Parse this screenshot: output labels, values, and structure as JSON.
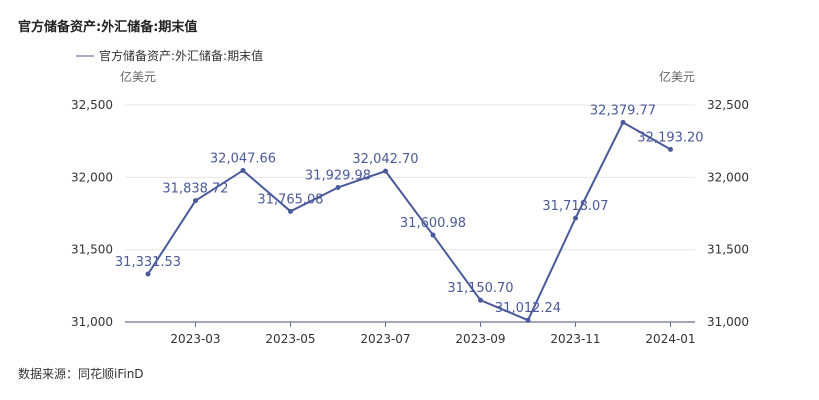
{
  "chart_data": {
    "type": "line",
    "title": "官方储备资产:外汇储备:期末值",
    "source": "数据来源：同花顺iFinD",
    "y_unit_left": "亿美元",
    "y_unit_right": "亿美元",
    "ylim": [
      31000,
      32500
    ],
    "y_ticks": [
      "31,000",
      "31,500",
      "32,000",
      "32,500"
    ],
    "x_ticks": [
      "2023-03",
      "2023-05",
      "2023-07",
      "2023-09",
      "2023-11",
      "2024-01"
    ],
    "legend_position": "top-left",
    "grid": "horizontal",
    "series": [
      {
        "name": "官方储备资产:外汇储备:期末值",
        "color": "#4b5a9a",
        "x": [
          "2023-02",
          "2023-03",
          "2023-04",
          "2023-05",
          "2023-06",
          "2023-07",
          "2023-08",
          "2023-09",
          "2023-10",
          "2023-11",
          "2023-12",
          "2024-01"
        ],
        "values": [
          31331.53,
          31838.72,
          32047.66,
          31765.08,
          31929.98,
          32042.7,
          31600.98,
          31150.7,
          31012.24,
          31718.07,
          32379.77,
          32193.2
        ],
        "labels": [
          "31,331.53",
          "31,838.72",
          "32,047.66",
          "31,765.08",
          "31,929.98",
          "32,042.70",
          "31,600.98",
          "31,150.70",
          "31,012.24",
          "31,718.07",
          "32,379.77",
          "32,193.20"
        ]
      }
    ]
  }
}
